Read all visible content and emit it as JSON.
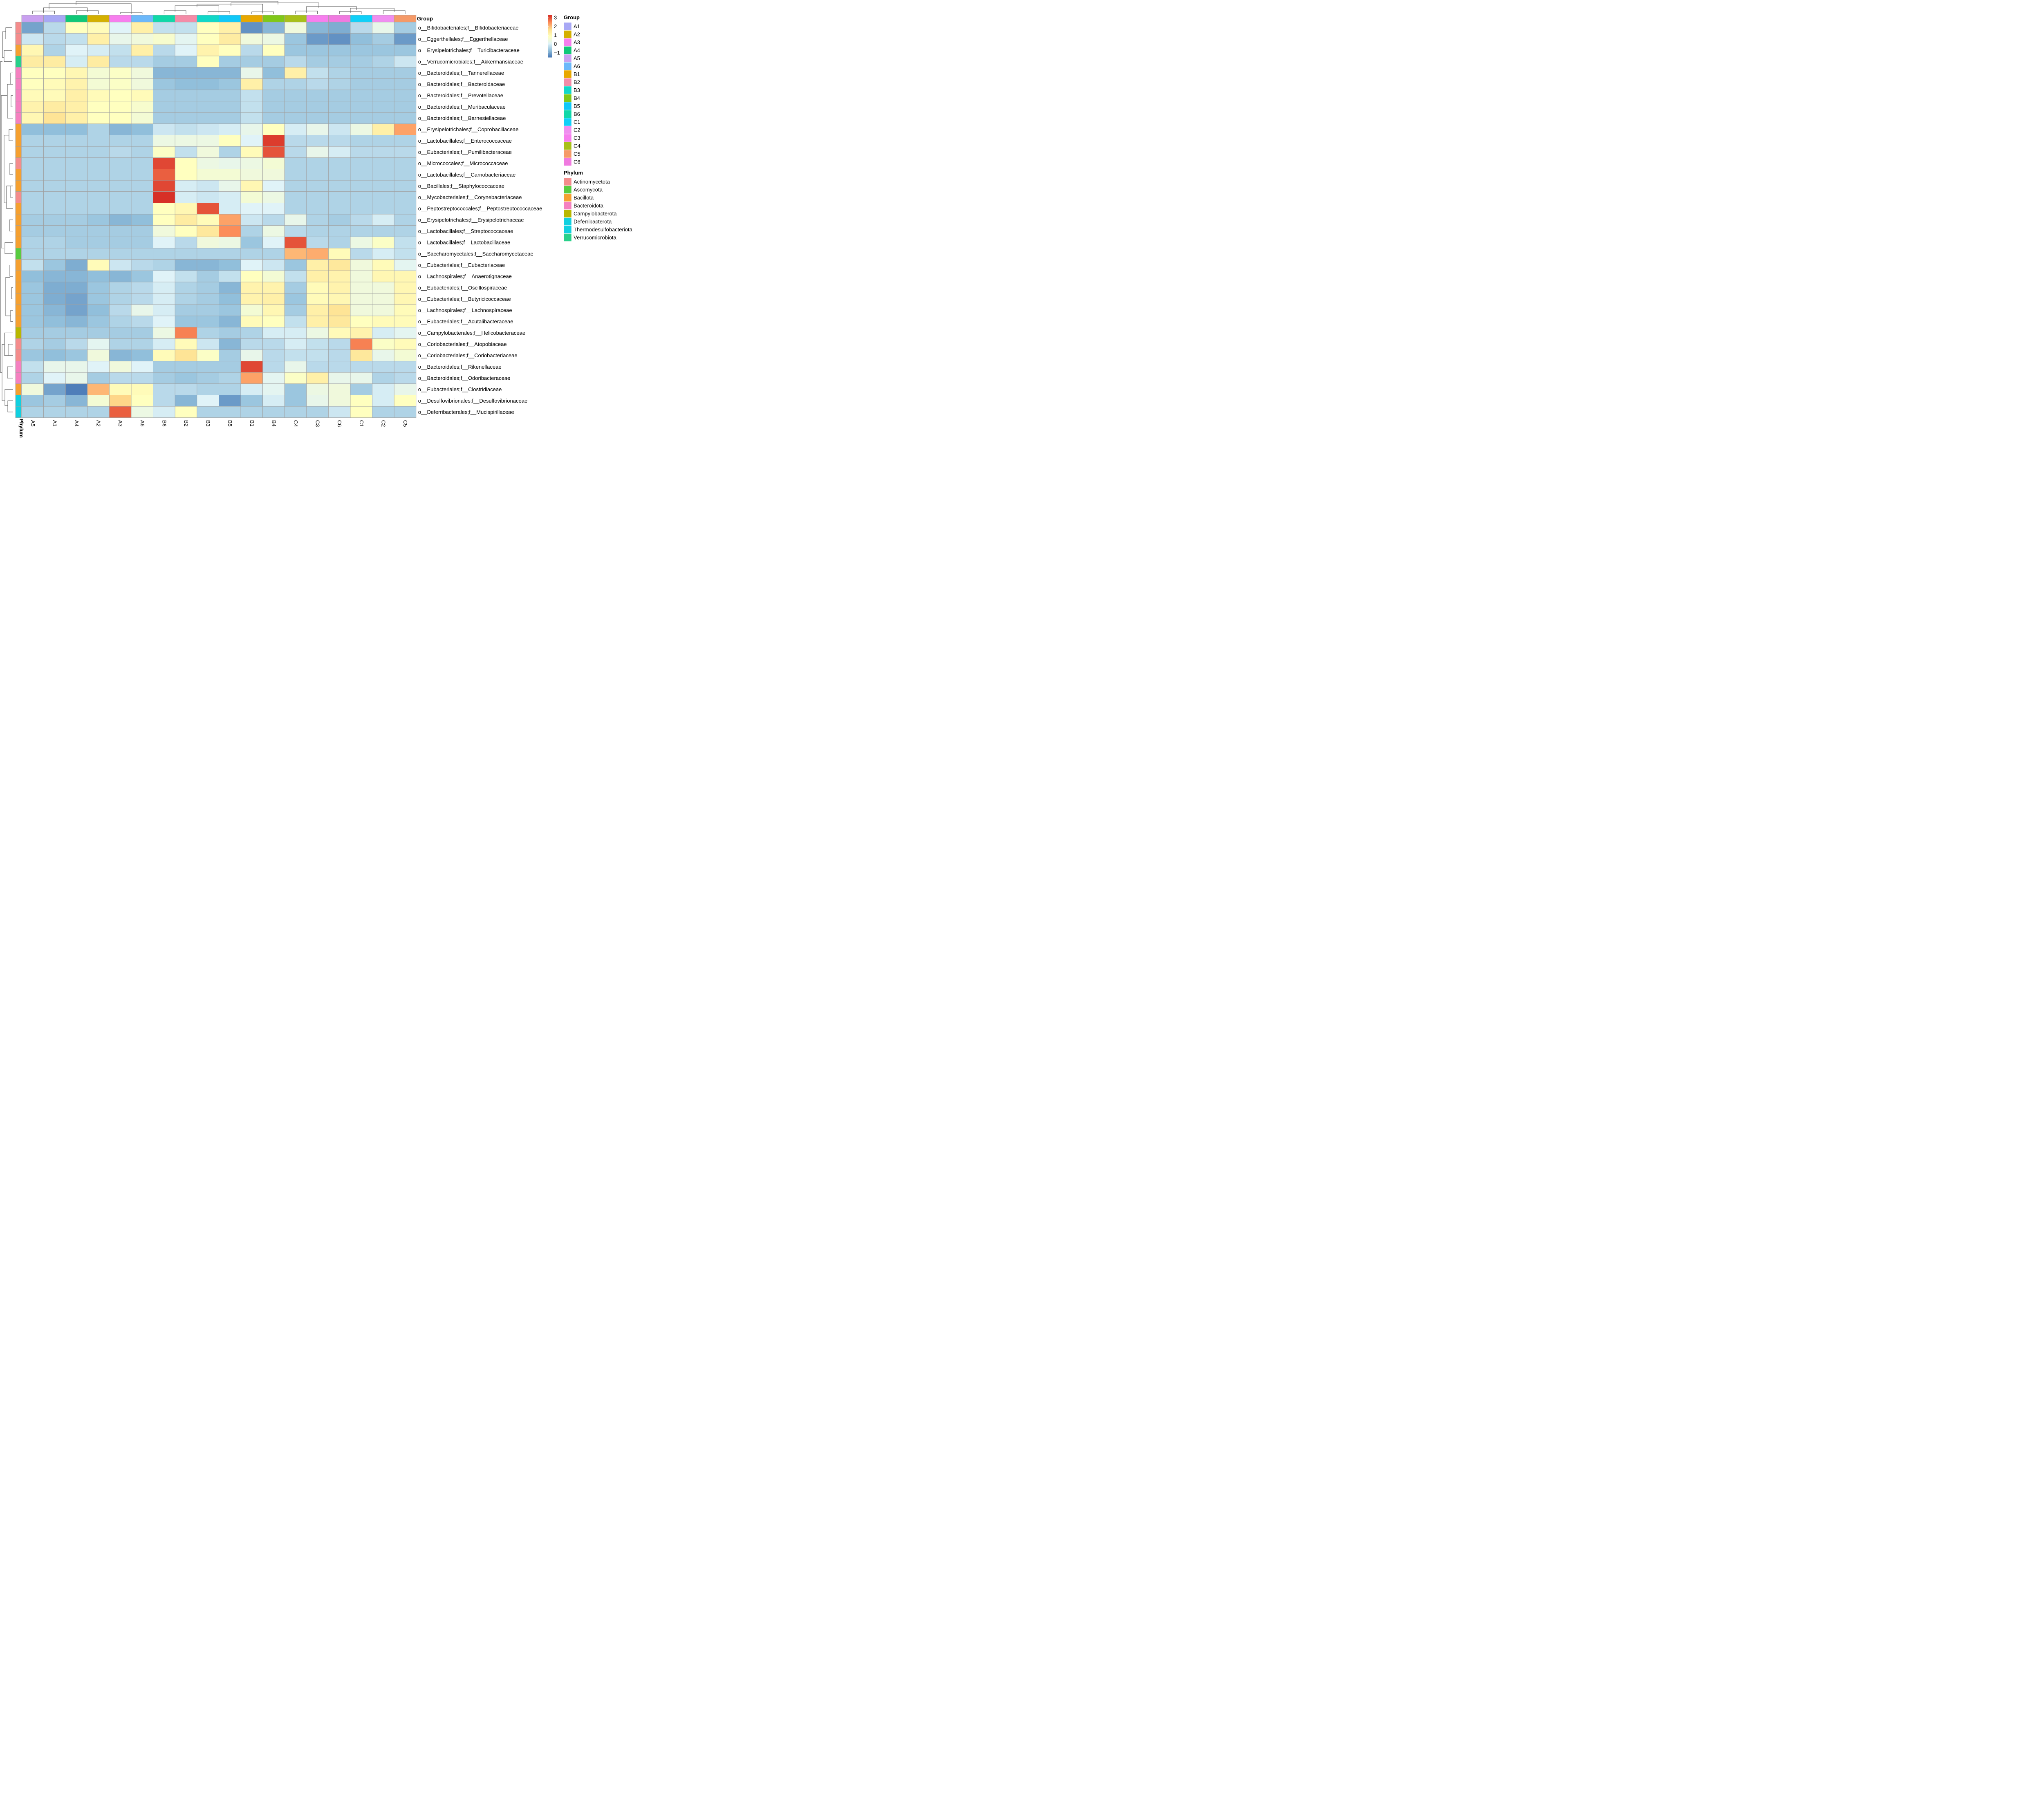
{
  "chart_data": {
    "type": "heatmap",
    "columns": [
      "A5",
      "A1",
      "A4",
      "A2",
      "A3",
      "A6",
      "B6",
      "B2",
      "B3",
      "B5",
      "B1",
      "B4",
      "C4",
      "C3",
      "C6",
      "C1",
      "C2",
      "C5"
    ],
    "rows": [
      "o__Bifidobacteriales;f__Bifidobacteriaceae",
      "o__Eggerthellales;f__Eggerthellaceae",
      "o__Erysipelotrichales;f__Turicibacteraceae",
      "o__Verrucomicrobiales;f__Akkermansiaceae",
      "o__Bacteroidales;f__Tannerellaceae",
      "o__Bacteroidales;f__Bacteroidaceae",
      "o__Bacteroidales;f__Prevotellaceae",
      "o__Bacteroidales;f__Muribaculaceae",
      "o__Bacteroidales;f__Barnesiellaceae",
      "o__Erysipelotrichales;f__Coprobacillaceae",
      "o__Lactobacillales;f__Enterococcaceae",
      "o__Eubacteriales;f__Pumilibacteraceae",
      "o__Micrococcales;f__Micrococcaceae",
      "o__Lactobacillales;f__Carnobacteriaceae",
      "o__Bacillales;f__Staphylococcaceae",
      "o__Mycobacteriales;f__Corynebacteriaceae",
      "o__Peptostreptococcales;f__Peptostreptococcaceae",
      "o__Erysipelotrichales;f__Erysipelotrichaceae",
      "o__Lactobacillales;f__Streptococcaceae",
      "o__Lactobacillales;f__Lactobacillaceae",
      "o__Saccharomycetales;f__Saccharomycetaceae",
      "o__Eubacteriales;f__Eubacteriaceae",
      "o__Lachnospirales;f__Anaerotignaceae",
      "o__Eubacteriales;f__Oscillospiraceae",
      "o__Eubacteriales;f__Butyricicoccaceae",
      "o__Lachnospirales;f__Lachnospiraceae",
      "o__Eubacteriales;f__Acutalibacteraceae",
      "o__Campylobacterales;f__Helicobacteraceae",
      "o__Coriobacteriales;f__Atopobiaceae",
      "o__Coriobacteriales;f__Coriobacteriaceae",
      "o__Bacteroidales;f__Rikenellaceae",
      "o__Bacteroidales;f__Odoribacteraceae",
      "o__Eubacteriales;f__Clostridiaceae",
      "o__Desulfovibrionales;f__Desulfovibrionaceae",
      "o__Deferribacterales;f__Mucispirillaceae"
    ],
    "values": [
      [
        -1.0,
        -0.3,
        0.9,
        1.0,
        0.1,
        1.3,
        -0.2,
        -0.2,
        0.9,
        1.3,
        -1.2,
        -0.8,
        0.5,
        -0.8,
        -0.9,
        -0.3,
        0.3,
        -0.5
      ],
      [
        -0.1,
        -0.3,
        -0.2,
        1.3,
        0.3,
        0.5,
        0.7,
        0.2,
        0.9,
        1.4,
        0.5,
        0.4,
        -0.6,
        -1.1,
        -1.2,
        -0.7,
        -0.5,
        -1.1
      ],
      [
        1.1,
        -0.4,
        0.1,
        0.0,
        -0.2,
        1.3,
        -0.3,
        0.1,
        1.2,
        0.9,
        -0.3,
        0.9,
        -0.6,
        -0.6,
        -0.6,
        -0.6,
        -0.6,
        -0.6
      ],
      [
        1.4,
        1.4,
        0.0,
        1.4,
        -0.3,
        -0.3,
        -0.5,
        -0.5,
        0.9,
        -0.5,
        -0.5,
        -0.5,
        -0.3,
        -0.5,
        -0.5,
        -0.5,
        -0.4,
        -0.1
      ],
      [
        0.9,
        0.9,
        1.1,
        0.6,
        0.8,
        0.5,
        -0.8,
        -0.8,
        -0.8,
        -0.8,
        0.3,
        -0.7,
        1.3,
        -0.2,
        -0.4,
        -0.5,
        -0.5,
        -0.5
      ],
      [
        0.9,
        1.0,
        1.2,
        0.6,
        0.8,
        0.5,
        -0.6,
        -0.7,
        -0.7,
        -0.6,
        1.3,
        -0.4,
        -0.4,
        -0.3,
        -0.4,
        -0.5,
        -0.5,
        -0.5
      ],
      [
        1.0,
        1.0,
        1.3,
        1.0,
        0.9,
        1.0,
        -0.5,
        -0.5,
        -0.5,
        -0.5,
        -0.2,
        -0.5,
        -0.5,
        -0.5,
        -0.5,
        -0.5,
        -0.5,
        -0.5
      ],
      [
        1.2,
        1.4,
        1.3,
        0.9,
        0.9,
        0.7,
        -0.5,
        -0.5,
        -0.5,
        -0.5,
        -0.2,
        -0.5,
        -0.5,
        -0.5,
        -0.5,
        -0.5,
        -0.5,
        -0.5
      ],
      [
        1.1,
        1.6,
        1.3,
        0.9,
        0.9,
        0.6,
        -0.5,
        -0.5,
        -0.5,
        -0.5,
        -0.2,
        -0.5,
        -0.5,
        -0.5,
        -0.5,
        -0.5,
        -0.5,
        -0.5
      ],
      [
        -0.7,
        -0.7,
        -0.7,
        -0.4,
        -0.8,
        -0.7,
        -0.1,
        -0.2,
        -0.1,
        0.0,
        0.3,
        0.9,
        0.0,
        0.3,
        -0.1,
        0.4,
        1.3,
        2.3
      ],
      [
        -0.4,
        -0.4,
        -0.4,
        -0.4,
        -0.4,
        -0.4,
        0.4,
        0.4,
        0.4,
        0.9,
        0.1,
        3.2,
        -0.3,
        -0.3,
        -0.3,
        -0.4,
        -0.4,
        -0.4
      ],
      [
        -0.4,
        -0.4,
        -0.4,
        -0.4,
        -0.3,
        -0.4,
        0.8,
        -0.2,
        0.5,
        -0.4,
        1.0,
        3.0,
        -0.3,
        0.3,
        0.0,
        -0.3,
        -0.3,
        -0.3
      ],
      [
        -0.4,
        -0.4,
        -0.4,
        -0.4,
        -0.4,
        -0.4,
        3.1,
        0.9,
        0.4,
        0.3,
        0.4,
        0.6,
        -0.4,
        -0.4,
        -0.4,
        -0.4,
        -0.4,
        -0.4
      ],
      [
        -0.4,
        -0.4,
        -0.4,
        -0.4,
        -0.4,
        -0.4,
        2.9,
        0.9,
        0.6,
        0.6,
        0.5,
        0.5,
        -0.4,
        -0.4,
        -0.4,
        -0.4,
        -0.4,
        -0.4
      ],
      [
        -0.4,
        -0.4,
        -0.4,
        -0.4,
        -0.4,
        -0.4,
        3.1,
        0.0,
        -0.1,
        0.3,
        1.1,
        0.1,
        -0.4,
        -0.4,
        -0.4,
        -0.4,
        -0.4,
        -0.4
      ],
      [
        -0.4,
        -0.4,
        -0.4,
        -0.4,
        -0.4,
        -0.4,
        3.3,
        0.0,
        -0.1,
        0.0,
        0.6,
        0.4,
        -0.4,
        -0.4,
        -0.4,
        -0.4,
        -0.4,
        -0.4
      ],
      [
        -0.4,
        -0.4,
        -0.4,
        -0.4,
        -0.4,
        -0.4,
        0.9,
        1.1,
        3.0,
        0.0,
        0.1,
        0.1,
        -0.4,
        -0.4,
        -0.4,
        -0.4,
        -0.4,
        -0.4
      ],
      [
        -0.5,
        -0.5,
        -0.5,
        -0.6,
        -0.8,
        -0.7,
        0.9,
        1.4,
        1.0,
        2.3,
        -0.1,
        -0.3,
        0.3,
        -0.4,
        -0.5,
        -0.3,
        0.0,
        -0.4
      ],
      [
        -0.5,
        -0.5,
        -0.5,
        -0.5,
        -0.5,
        -0.5,
        0.5,
        0.9,
        1.5,
        2.5,
        -0.4,
        0.4,
        -0.3,
        -0.4,
        -0.4,
        -0.4,
        -0.4,
        -0.4
      ],
      [
        -0.4,
        -0.4,
        -0.5,
        -0.5,
        -0.5,
        -0.5,
        0.1,
        -0.3,
        0.5,
        0.4,
        -0.6,
        0.1,
        3.0,
        -0.3,
        -0.4,
        0.4,
        0.8,
        -0.2
      ],
      [
        -0.4,
        -0.4,
        -0.4,
        -0.4,
        -0.4,
        -0.4,
        -0.4,
        -0.4,
        -0.4,
        -0.4,
        -0.4,
        -0.4,
        2.1,
        2.2,
        1.0,
        -0.3,
        0.0,
        -0.2
      ],
      [
        -0.2,
        -0.6,
        -0.9,
        1.0,
        -0.1,
        -0.3,
        -0.4,
        -0.8,
        -0.8,
        -0.7,
        0.1,
        -0.1,
        -0.6,
        1.3,
        1.5,
        0.5,
        1.0,
        0.2
      ],
      [
        -0.7,
        -0.8,
        -0.8,
        -0.7,
        -0.8,
        -0.6,
        0.1,
        -0.2,
        -0.5,
        -0.2,
        0.9,
        0.6,
        -0.2,
        1.3,
        1.2,
        0.5,
        1.1,
        1.1
      ],
      [
        -0.6,
        -0.9,
        -0.9,
        -0.6,
        -0.4,
        -0.3,
        0.0,
        -0.4,
        -0.5,
        -0.8,
        1.2,
        1.2,
        -0.5,
        1.0,
        1.2,
        0.5,
        0.5,
        1.1
      ],
      [
        -0.6,
        -0.9,
        -1.0,
        -0.6,
        -0.4,
        -0.3,
        0.0,
        -0.4,
        -0.5,
        -0.7,
        1.2,
        1.3,
        -0.6,
        1.0,
        1.1,
        0.5,
        0.5,
        1.1
      ],
      [
        -0.6,
        -0.8,
        -1.0,
        -0.7,
        -0.3,
        0.3,
        0.0,
        -0.5,
        -0.5,
        -0.6,
        0.6,
        1.1,
        -0.5,
        1.3,
        1.6,
        0.5,
        0.5,
        1.0
      ],
      [
        -0.6,
        -0.7,
        -0.8,
        -0.6,
        -0.4,
        -0.3,
        0.1,
        -0.6,
        -0.6,
        -0.8,
        1.0,
        0.9,
        -0.2,
        1.3,
        1.5,
        0.9,
        1.0,
        1.0
      ],
      [
        -0.5,
        -0.5,
        -0.5,
        -0.5,
        -0.5,
        -0.5,
        0.4,
        2.6,
        -0.4,
        -0.5,
        -0.4,
        0.0,
        0.0,
        0.4,
        1.0,
        1.2,
        0.0,
        0.2
      ],
      [
        -0.4,
        -0.5,
        -0.3,
        0.2,
        -0.4,
        -0.4,
        0.0,
        1.0,
        -0.1,
        -0.8,
        -0.3,
        -0.3,
        0.0,
        -0.2,
        -0.3,
        2.6,
        0.8,
        1.0
      ],
      [
        -0.6,
        -0.7,
        -0.6,
        0.5,
        -0.8,
        -0.7,
        1.0,
        1.6,
        0.8,
        -0.5,
        0.3,
        -0.3,
        -0.2,
        -0.2,
        -0.3,
        1.5,
        0.3,
        0.6
      ],
      [
        -0.2,
        0.3,
        0.3,
        0.1,
        0.5,
        0.1,
        -0.5,
        -0.5,
        -0.5,
        -0.5,
        3.1,
        -0.3,
        0.3,
        -0.3,
        -0.3,
        -0.3,
        -0.3,
        -0.3
      ],
      [
        -0.4,
        0.1,
        0.3,
        -0.5,
        -0.3,
        -0.3,
        -0.5,
        -0.6,
        -0.5,
        -0.4,
        2.3,
        0.2,
        0.8,
        1.3,
        0.3,
        0.3,
        -0.4,
        -0.3
      ],
      [
        0.5,
        -1.0,
        -1.4,
        2.1,
        1.0,
        1.0,
        -0.3,
        -0.3,
        -0.4,
        -0.4,
        0.0,
        0.2,
        -0.6,
        0.4,
        0.5,
        -0.5,
        0.0,
        0.3
      ],
      [
        -0.6,
        -0.5,
        -0.8,
        0.6,
        1.8,
        0.9,
        -0.3,
        -0.8,
        0.1,
        -1.1,
        -0.6,
        0.0,
        -0.6,
        0.3,
        0.5,
        0.9,
        0.0,
        0.9
      ],
      [
        -0.4,
        -0.4,
        -0.4,
        -0.4,
        2.9,
        0.4,
        0.0,
        0.9,
        -0.4,
        -0.4,
        -0.4,
        -0.4,
        -0.4,
        -0.4,
        -0.1,
        0.9,
        -0.4,
        -0.4
      ]
    ],
    "column_group_colors": [
      "#C9A0F0",
      "#A8A8F5",
      "#10C878",
      "#D4B000",
      "#F77EEE",
      "#6CB8FA",
      "#10D8A8",
      "#F48CA8",
      "#10D8C8",
      "#10C8F8",
      "#E8A800",
      "#80C818",
      "#A8C018",
      "#F77EEE",
      "#F07AE0",
      "#10D0F8",
      "#F08EF0",
      "#F59A68"
    ],
    "row_phylum_colors": [
      "#F48C8C",
      "#F48C8C",
      "#F5A030",
      "#28D08A",
      "#F580C0",
      "#F580C0",
      "#F580C0",
      "#F580C0",
      "#F580C0",
      "#F5A030",
      "#F5A030",
      "#F5A030",
      "#F48C8C",
      "#F5A030",
      "#F5A030",
      "#F48C8C",
      "#F5A030",
      "#F5A030",
      "#F5A030",
      "#F5A030",
      "#58CC40",
      "#F5A030",
      "#F5A030",
      "#F5A030",
      "#F5A030",
      "#F5A030",
      "#F5A030",
      "#B8B800",
      "#F48C8C",
      "#F48C8C",
      "#F580C0",
      "#F580C0",
      "#F5A030",
      "#10D0E0",
      "#10D0E0"
    ],
    "color_scale": {
      "ticks": [
        "3",
        "2",
        "1",
        "0",
        "−1"
      ],
      "tick_values": [
        3,
        2,
        1,
        0,
        -1
      ],
      "min": -1.5,
      "max": 3.3,
      "colors": [
        "#4575B4",
        "#91BFDB",
        "#E0F3F8",
        "#FFFFBF",
        "#FEE090",
        "#FC8D59",
        "#D73027"
      ]
    },
    "col_annotation_label": "Group",
    "row_annotation_label": "Phylum",
    "legend_group": {
      "title": "Group",
      "items": [
        {
          "label": "A1",
          "color": "#A8A8F5"
        },
        {
          "label": "A2",
          "color": "#D4B000"
        },
        {
          "label": "A3",
          "color": "#F77EEE"
        },
        {
          "label": "A4",
          "color": "#10C878"
        },
        {
          "label": "A5",
          "color": "#C9A0F0"
        },
        {
          "label": "A6",
          "color": "#6CB8FA"
        },
        {
          "label": "B1",
          "color": "#E8A800"
        },
        {
          "label": "B2",
          "color": "#F48CA8"
        },
        {
          "label": "B3",
          "color": "#10D8C8"
        },
        {
          "label": "B4",
          "color": "#80C818"
        },
        {
          "label": "B5",
          "color": "#10C8F8"
        },
        {
          "label": "B6",
          "color": "#10D8A8"
        },
        {
          "label": "C1",
          "color": "#10D0F8"
        },
        {
          "label": "C2",
          "color": "#F08EF0"
        },
        {
          "label": "C3",
          "color": "#F77EEE"
        },
        {
          "label": "C4",
          "color": "#A8C018"
        },
        {
          "label": "C5",
          "color": "#F59A68"
        },
        {
          "label": "C6",
          "color": "#F07AE0"
        }
      ]
    },
    "legend_phylum": {
      "title": "Phylum",
      "items": [
        {
          "label": "Actinomycetota",
          "color": "#F48C8C"
        },
        {
          "label": "Ascomycota",
          "color": "#58CC40"
        },
        {
          "label": "Bacillota",
          "color": "#F5A030"
        },
        {
          "label": "Bacteroidota",
          "color": "#F580C0"
        },
        {
          "label": "Campylobacterota",
          "color": "#B8B800"
        },
        {
          "label": "Deferribacterota",
          "color": "#10D0E0"
        },
        {
          "label": "Thermodesulfobacteriota",
          "color": "#10D0E0"
        },
        {
          "label": "Verrucomicrobiota",
          "color": "#28D08A"
        }
      ]
    },
    "cell_border_color": "#A0A0A0",
    "dendrograms": [
      "top",
      "left"
    ]
  }
}
